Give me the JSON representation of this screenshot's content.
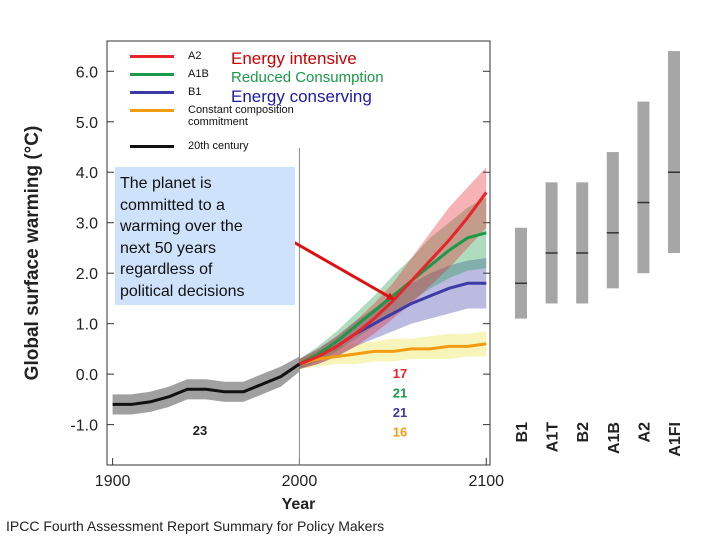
{
  "chart_data": {
    "type": "line",
    "y_label": "Global surface warming (°C)",
    "x_label": "Year",
    "xlim": [
      1897,
      2102
    ],
    "ylim": [
      -1.8,
      6.6
    ],
    "xticks": [
      1900,
      2000,
      2100
    ],
    "yticks": [
      {
        "value": -1,
        "label": "-1.0"
      },
      {
        "value": 0,
        "label": "0.0"
      },
      {
        "value": 1,
        "label": "1.0"
      },
      {
        "value": 2,
        "label": "2.0"
      },
      {
        "value": 3,
        "label": "3.0"
      },
      {
        "value": 4,
        "label": "4.0"
      },
      {
        "value": 5,
        "label": "5.0"
      },
      {
        "value": 6,
        "label": "6.0"
      }
    ],
    "series": [
      {
        "name": "A2",
        "color": "#e8232a",
        "models": 17,
        "x": [
          2000,
          2010,
          2020,
          2030,
          2040,
          2050,
          2060,
          2070,
          2080,
          2090,
          2100
        ],
        "values": [
          0.2,
          0.35,
          0.55,
          0.8,
          1.1,
          1.45,
          1.85,
          2.25,
          2.65,
          3.1,
          3.6
        ],
        "lower": [
          0.1,
          0.2,
          0.35,
          0.55,
          0.8,
          1.1,
          1.4,
          1.75,
          2.1,
          2.5,
          2.9
        ],
        "upper": [
          0.3,
          0.5,
          0.75,
          1.05,
          1.4,
          1.8,
          2.3,
          2.8,
          3.3,
          3.7,
          4.1
        ]
      },
      {
        "name": "A1B",
        "color": "#1a9a48",
        "models": 21,
        "x": [
          2000,
          2010,
          2020,
          2030,
          2040,
          2050,
          2060,
          2070,
          2080,
          2090,
          2100
        ],
        "values": [
          0.2,
          0.4,
          0.65,
          0.95,
          1.25,
          1.55,
          1.85,
          2.15,
          2.45,
          2.7,
          2.8
        ],
        "lower": [
          0.1,
          0.25,
          0.45,
          0.7,
          0.95,
          1.2,
          1.45,
          1.7,
          1.9,
          2.05,
          2.1
        ],
        "upper": [
          0.3,
          0.55,
          0.85,
          1.2,
          1.55,
          1.95,
          2.3,
          2.7,
          3.0,
          3.3,
          3.5
        ]
      },
      {
        "name": "B1",
        "color": "#3b3aa6",
        "models": 21,
        "x": [
          2000,
          2010,
          2020,
          2030,
          2040,
          2050,
          2060,
          2070,
          2080,
          2090,
          2100
        ],
        "values": [
          0.2,
          0.35,
          0.55,
          0.8,
          1.0,
          1.2,
          1.4,
          1.55,
          1.7,
          1.8,
          1.8
        ],
        "lower": [
          0.1,
          0.2,
          0.35,
          0.55,
          0.7,
          0.85,
          1.0,
          1.1,
          1.2,
          1.3,
          1.3
        ],
        "upper": [
          0.3,
          0.5,
          0.75,
          1.05,
          1.3,
          1.6,
          1.8,
          2.0,
          2.15,
          2.25,
          2.3
        ]
      },
      {
        "name": "Constant composition commitment",
        "color": "#f39c12",
        "models": 16,
        "x": [
          2000,
          2010,
          2020,
          2030,
          2040,
          2050,
          2060,
          2070,
          2080,
          2090,
          2100
        ],
        "values": [
          0.2,
          0.3,
          0.35,
          0.4,
          0.45,
          0.45,
          0.5,
          0.5,
          0.55,
          0.55,
          0.6
        ],
        "lower": [
          0.1,
          0.15,
          0.2,
          0.2,
          0.25,
          0.25,
          0.3,
          0.3,
          0.3,
          0.35,
          0.35
        ],
        "upper": [
          0.3,
          0.45,
          0.55,
          0.6,
          0.65,
          0.7,
          0.7,
          0.75,
          0.8,
          0.8,
          0.85
        ]
      },
      {
        "name": "20th century",
        "color": "#111111",
        "models": 23,
        "x": [
          1900,
          1910,
          1920,
          1930,
          1940,
          1950,
          1960,
          1970,
          1980,
          1990,
          2000
        ],
        "values": [
          -0.6,
          -0.6,
          -0.55,
          -0.45,
          -0.3,
          -0.3,
          -0.35,
          -0.35,
          -0.2,
          -0.05,
          0.2
        ],
        "lower": [
          -0.8,
          -0.8,
          -0.75,
          -0.65,
          -0.5,
          -0.5,
          -0.55,
          -0.55,
          -0.4,
          -0.25,
          0.05
        ],
        "upper": [
          -0.4,
          -0.4,
          -0.35,
          -0.25,
          -0.1,
          -0.1,
          -0.15,
          -0.15,
          0.0,
          0.15,
          0.35
        ]
      }
    ],
    "ranges": [
      {
        "name": "B1",
        "low": 1.1,
        "best": 1.8,
        "high": 2.9
      },
      {
        "name": "A1T",
        "low": 1.4,
        "best": 2.4,
        "high": 3.8
      },
      {
        "name": "B2",
        "low": 1.4,
        "best": 2.4,
        "high": 3.8
      },
      {
        "name": "A1B",
        "low": 1.7,
        "best": 2.8,
        "high": 4.4
      },
      {
        "name": "A2",
        "low": 2.0,
        "best": 3.4,
        "high": 5.4
      },
      {
        "name": "A1FI",
        "low": 2.4,
        "best": 4.0,
        "high": 6.4
      }
    ],
    "legend_notes": [
      {
        "text": "Energy intensive",
        "color": "#cc0000"
      },
      {
        "text": "Reduced Consumption",
        "color": "#1a9a48"
      },
      {
        "text": "Energy conserving",
        "color": "#1a1aa8"
      }
    ],
    "callout": [
      "The planet is",
      "committed to a",
      "warming over the",
      "next 50 years",
      "regardless of",
      "political decisions"
    ],
    "footer": "IPCC Fourth Assessment Report Summary for Policy Makers"
  }
}
